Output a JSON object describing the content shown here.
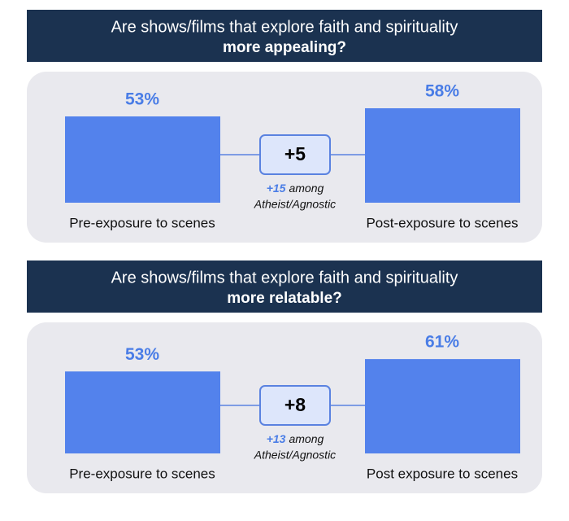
{
  "chart_data": [
    {
      "type": "bar",
      "title": "Are shows/films that explore faith and spirituality",
      "subtitle": "more appealing?",
      "categories": [
        "Pre-exposure to scenes",
        "Post-exposure to scenes"
      ],
      "values": [
        53,
        58
      ],
      "value_labels": [
        "53%",
        "58%"
      ],
      "color": "#5382ec",
      "delta": "+5",
      "note_value": "+15",
      "note_text": "among",
      "note_group": "Atheist/Agnostic"
    },
    {
      "type": "bar",
      "title": "Are shows/films that explore faith and spirituality",
      "subtitle": "more relatable?",
      "categories": [
        "Pre-exposure to scenes",
        "Post exposure to scenes"
      ],
      "values": [
        53,
        61
      ],
      "value_labels": [
        "53%",
        "61%"
      ],
      "color": "#5382ec",
      "delta": "+8",
      "note_value": "+13",
      "note_text": "among",
      "note_group": "Atheist/Agnostic"
    }
  ]
}
